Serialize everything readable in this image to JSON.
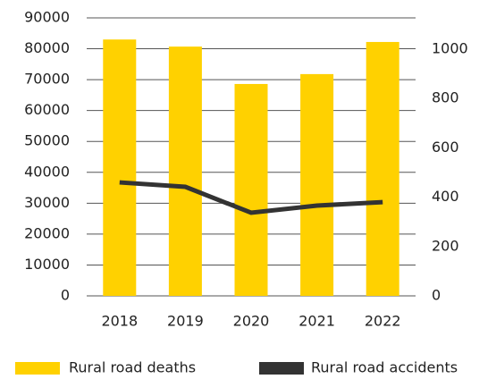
{
  "chart_data": {
    "type": "bar_line",
    "categories": [
      "2018",
      "2019",
      "2020",
      "2021",
      "2022"
    ],
    "series": [
      {
        "name": "Rural road deaths",
        "color": "#ffd100",
        "type": "bar",
        "values": [
          83000,
          80700,
          68600,
          71800,
          82200
        ]
      },
      {
        "name": "Rural road accidents",
        "color": "#333333",
        "type": "line",
        "axis": "y2",
        "values": [
          460,
          442,
          337,
          366,
          380
        ]
      }
    ],
    "ylim": [
      0,
      90000
    ],
    "yticks": [
      0,
      10000,
      20000,
      30000,
      40000,
      50000,
      60000,
      70000,
      80000,
      90000
    ],
    "y2lim": [
      0,
      1127
    ],
    "y2ticks": [
      0,
      200,
      400,
      600,
      800,
      1000
    ],
    "grid": true,
    "legend": "bottom"
  }
}
